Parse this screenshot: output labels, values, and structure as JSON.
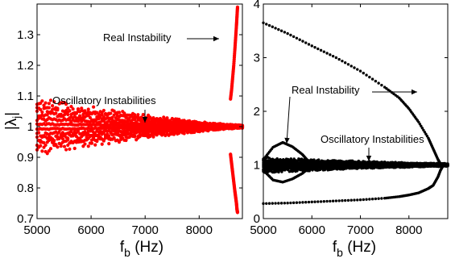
{
  "chart_data": [
    {
      "type": "scatter",
      "panel": "left",
      "xlabel": {
        "main": "f",
        "sub": "b",
        "rest": " (Hz)"
      },
      "ylabel": {
        "pre": "|λ",
        "sub": "j",
        "post": "|"
      },
      "xlim": [
        5000,
        8800
      ],
      "ylim": [
        0.7,
        1.4
      ],
      "xticks": [
        "5000",
        "6000",
        "7000",
        "8000"
      ],
      "xtick_values": [
        5000,
        6000,
        7000,
        8000
      ],
      "yticks": [
        "0.7",
        "0.8",
        "0.9",
        "1",
        "1.1",
        "1.2",
        "1.3"
      ],
      "ytick_values": [
        0.7,
        0.8,
        0.9,
        1.0,
        1.1,
        1.2,
        1.3
      ],
      "marker_color": "#ff0000",
      "series": [
        {
          "kind": "oscillatory-band",
          "x_start": 5000,
          "x_end": 8800,
          "amplitude_start": 0.09,
          "amplitude_end": 0.005
        },
        {
          "kind": "real-upper",
          "x": [
            8580,
            8600,
            8620,
            8640,
            8660,
            8675,
            8690,
            8700,
            8710
          ],
          "y": [
            1.09,
            1.12,
            1.16,
            1.2,
            1.25,
            1.29,
            1.33,
            1.36,
            1.39
          ]
        },
        {
          "kind": "real-lower",
          "x": [
            8580,
            8600,
            8620,
            8640,
            8660,
            8675,
            8690,
            8700,
            8710
          ],
          "y": [
            0.91,
            0.88,
            0.85,
            0.82,
            0.79,
            0.77,
            0.75,
            0.73,
            0.72
          ]
        }
      ],
      "annotations": [
        {
          "text": "Real Instability",
          "x": 7440,
          "y": 1.33
        },
        {
          "text": "Oscillatory Instabilities",
          "x": 5200,
          "y": 1.09
        }
      ]
    },
    {
      "type": "scatter",
      "panel": "right",
      "xlabel": {
        "main": "f",
        "sub": "b",
        "rest": " (Hz)"
      },
      "ylabel": null,
      "xlim": [
        5000,
        8800
      ],
      "ylim": [
        0,
        4
      ],
      "xticks": [
        "5000",
        "6000",
        "7000",
        "8000"
      ],
      "xtick_values": [
        5000,
        6000,
        7000,
        8000
      ],
      "yticks": [
        "0",
        "1",
        "2",
        "3",
        "4"
      ],
      "ytick_values": [
        0,
        1,
        2,
        3,
        4
      ],
      "marker_color": "#000000",
      "series": [
        {
          "kind": "upper-branch",
          "x": [
            5000,
            5500,
            6000,
            6500,
            7000,
            7500,
            7800,
            8000,
            8200,
            8400,
            8500,
            8600,
            8650,
            8700
          ],
          "y": [
            3.65,
            3.45,
            3.22,
            3.0,
            2.75,
            2.45,
            2.25,
            2.05,
            1.8,
            1.5,
            1.3,
            1.1,
            1.02,
            0.98
          ]
        },
        {
          "kind": "lower-branch",
          "x": [
            5000,
            5500,
            6000,
            6500,
            7000,
            7500,
            7800,
            8000,
            8200,
            8400,
            8500,
            8600,
            8650,
            8700
          ],
          "y": [
            0.28,
            0.29,
            0.31,
            0.33,
            0.35,
            0.38,
            0.41,
            0.44,
            0.48,
            0.56,
            0.62,
            0.78,
            0.9,
            0.98
          ]
        },
        {
          "kind": "loop-upper",
          "x": [
            5000,
            5200,
            5400,
            5600,
            5800,
            5950
          ],
          "y": [
            1.1,
            1.33,
            1.42,
            1.34,
            1.2,
            1.05
          ]
        },
        {
          "kind": "loop-lower",
          "x": [
            5000,
            5200,
            5400,
            5600,
            5800,
            5950
          ],
          "y": [
            0.9,
            0.72,
            0.68,
            0.74,
            0.84,
            0.95
          ]
        },
        {
          "kind": "oscillatory-band",
          "x_start": 5000,
          "x_end": 8800,
          "amplitude_start": 0.12,
          "amplitude_end": 0.03
        }
      ],
      "annotations": [
        {
          "text": "Real Instability",
          "x": 5750,
          "y": 2.4
        },
        {
          "text": "Oscillatory Instabilities",
          "x": 6480,
          "y": 1.43
        }
      ]
    }
  ]
}
